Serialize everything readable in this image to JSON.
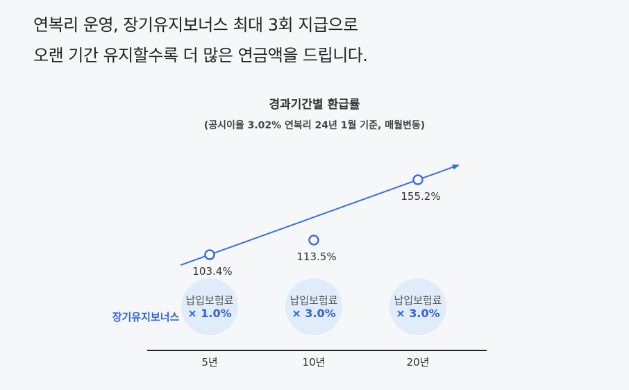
{
  "headline": {
    "line1": "연복리 운영, 장기유지보너스 최대 3회 지급으로",
    "line2": "오랜 기간 유지할수록 더 많은 연금액을 드립니다."
  },
  "chart_data": {
    "type": "line",
    "title": "경과기간별 환급률",
    "subtitle": "(공시이율 3.02% 연복리 24년 1월 기준, 매월변동)",
    "categories": [
      "5년",
      "10년",
      "20년"
    ],
    "values": [
      103.4,
      113.5,
      155.2
    ],
    "value_labels": [
      "103.4%",
      "113.5%",
      "155.2%"
    ],
    "unit": "%",
    "bonus_label": "장기유지보너스",
    "multipliers": [
      {
        "title": "납입보험료",
        "value": "× 1.0%"
      },
      {
        "title": "납입보험료",
        "value": "× 3.0%"
      },
      {
        "title": "납입보험료",
        "value": "× 3.0%"
      }
    ],
    "colors": {
      "line": "#3a6fe0",
      "circle_fill": "#e1ecfb",
      "axis": "#222222"
    }
  }
}
